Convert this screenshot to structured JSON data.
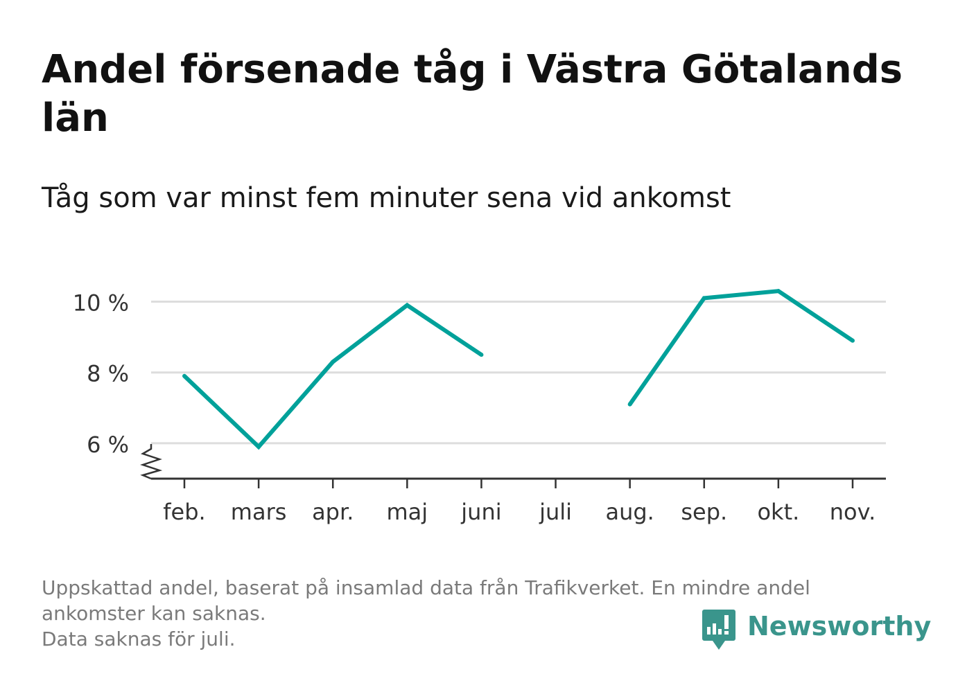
{
  "title": "Andel försenade tåg i Västra Götalands län",
  "subtitle": "Tåg som var minst fem minuter sena vid ankomst",
  "footnote": {
    "line1": "Uppskattad andel, baserat på insamlad data från Trafikverket. En mindre andel ankomster kan saknas.",
    "line2": "Data saknas för juli."
  },
  "brand": {
    "name": "Newsworthy",
    "color": "#3a958c",
    "icon": "chart-bubble-icon"
  },
  "chart_data": {
    "type": "line",
    "title": "Andel försenade tåg i Västra Götalands län",
    "subtitle": "Tåg som var minst fem minuter sena vid ankomst",
    "xlabel": "",
    "ylabel": "",
    "categories": [
      "feb.",
      "mars",
      "apr.",
      "maj",
      "juni",
      "juli",
      "aug.",
      "sep.",
      "okt.",
      "nov."
    ],
    "series": [
      {
        "values": [
          7.9,
          5.9,
          8.3,
          9.9,
          8.5,
          null,
          7.1,
          10.1,
          10.3,
          8.9
        ]
      }
    ],
    "ylim": [
      5,
      10.8
    ],
    "yticks": [
      6,
      8,
      10
    ],
    "ytick_labels": [
      "6 %",
      "8 %",
      "10 %"
    ],
    "axis_break": true,
    "grid": true,
    "legend": "none",
    "line_color": "#00a19a",
    "grid_color": "#dddddd",
    "axis_color": "#333333"
  }
}
